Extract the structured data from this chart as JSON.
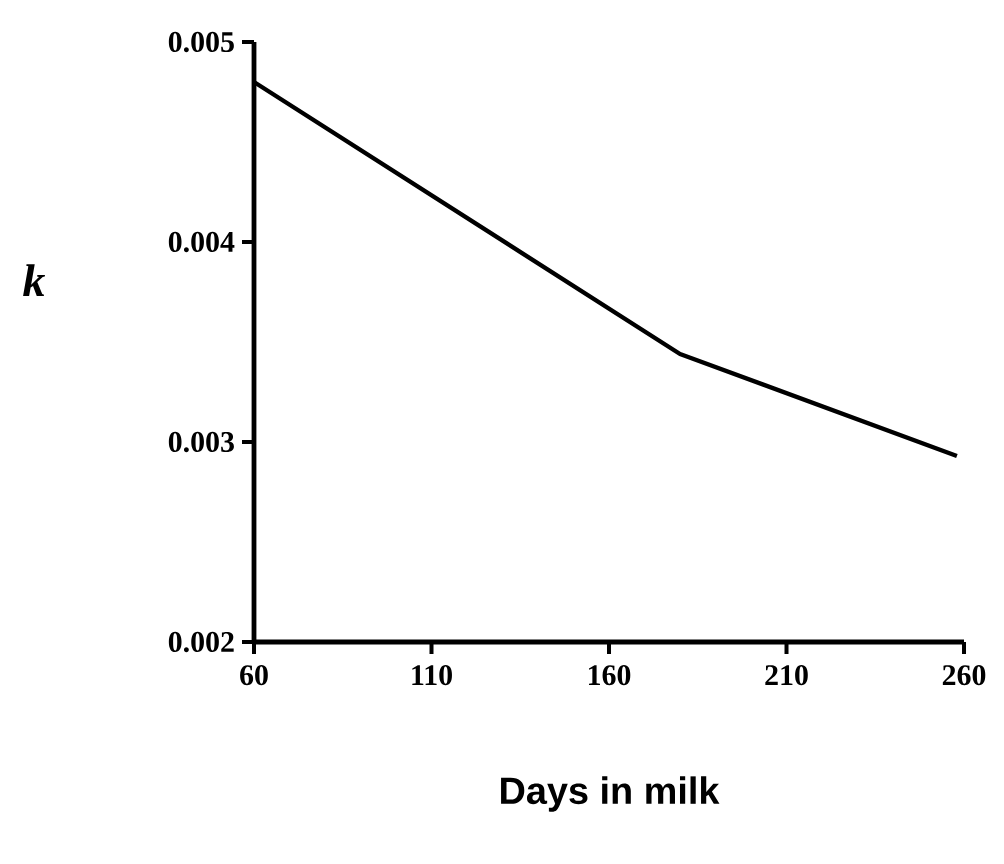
{
  "chart_data": {
    "type": "line",
    "xlabel": "Days in milk",
    "ylabel": "k",
    "x": [
      60,
      180,
      258
    ],
    "values": [
      0.0048,
      0.00344,
      0.00293
    ],
    "color": "#000000",
    "xlim": [
      60,
      260
    ],
    "ylim": [
      0.002,
      0.005
    ],
    "xticks": [
      60,
      110,
      160,
      210,
      260
    ],
    "yticks": [
      0.002,
      0.003,
      0.004,
      0.005
    ]
  }
}
